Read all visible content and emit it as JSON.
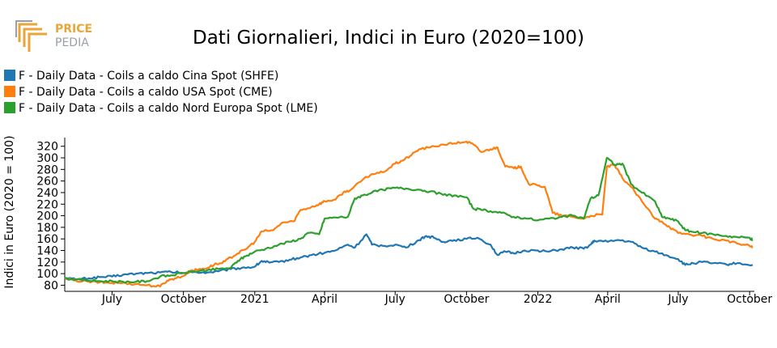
{
  "logo": {
    "line1": "PRICE",
    "line2": "PEDIA"
  },
  "chart_data": {
    "type": "line",
    "title": "Dati Giornalieri, Indici in Euro (2020=100)",
    "xlabel": "",
    "ylabel": "Indici in Euro (2020 = 100)",
    "ylim": [
      75,
      335
    ],
    "yticks": [
      80,
      100,
      120,
      140,
      160,
      180,
      200,
      220,
      240,
      260,
      280,
      300,
      320
    ],
    "xlim": [
      "2020-05-01",
      "2022-10-05"
    ],
    "xticks": [
      {
        "date": "2020-07-01",
        "label": "July"
      },
      {
        "date": "2020-10-01",
        "label": "October"
      },
      {
        "date": "2021-01-01",
        "label": "2021"
      },
      {
        "date": "2021-04-01",
        "label": "April"
      },
      {
        "date": "2021-07-01",
        "label": "July"
      },
      {
        "date": "2021-10-01",
        "label": "October"
      },
      {
        "date": "2022-01-01",
        "label": "2022"
      },
      {
        "date": "2022-04-01",
        "label": "April"
      },
      {
        "date": "2022-07-01",
        "label": "July"
      },
      {
        "date": "2022-10-01",
        "label": "October"
      }
    ],
    "grid": false,
    "legend_position": "top-left",
    "series": [
      {
        "name": "F - Daily Data - Coils a caldo Cina Spot (SHFE)",
        "color": "#1f77b4",
        "points": [
          [
            "2020-05-01",
            93
          ],
          [
            "2020-05-15",
            90
          ],
          [
            "2020-06-01",
            92
          ],
          [
            "2020-06-15",
            94
          ],
          [
            "2020-07-01",
            95
          ],
          [
            "2020-07-15",
            98
          ],
          [
            "2020-08-01",
            100
          ],
          [
            "2020-08-15",
            101
          ],
          [
            "2020-09-01",
            102
          ],
          [
            "2020-09-15",
            103
          ],
          [
            "2020-10-01",
            101
          ],
          [
            "2020-10-15",
            103
          ],
          [
            "2020-11-01",
            102
          ],
          [
            "2020-11-15",
            104
          ],
          [
            "2020-12-01",
            108
          ],
          [
            "2020-12-15",
            110
          ],
          [
            "2021-01-01",
            112
          ],
          [
            "2021-01-10",
            122
          ],
          [
            "2021-01-20",
            119
          ],
          [
            "2021-02-01",
            120
          ],
          [
            "2021-02-15",
            124
          ],
          [
            "2021-03-01",
            128
          ],
          [
            "2021-03-15",
            132
          ],
          [
            "2021-04-01",
            136
          ],
          [
            "2021-04-15",
            140
          ],
          [
            "2021-05-01",
            150
          ],
          [
            "2021-05-10",
            145
          ],
          [
            "2021-05-25",
            168
          ],
          [
            "2021-06-01",
            150
          ],
          [
            "2021-06-15",
            148
          ],
          [
            "2021-07-01",
            150
          ],
          [
            "2021-07-15",
            145
          ],
          [
            "2021-08-01",
            158
          ],
          [
            "2021-08-10",
            165
          ],
          [
            "2021-08-20",
            162
          ],
          [
            "2021-09-01",
            155
          ],
          [
            "2021-09-15",
            158
          ],
          [
            "2021-10-01",
            160
          ],
          [
            "2021-10-15",
            162
          ],
          [
            "2021-11-01",
            150
          ],
          [
            "2021-11-10",
            132
          ],
          [
            "2021-11-20",
            138
          ],
          [
            "2021-12-01",
            135
          ],
          [
            "2021-12-15",
            140
          ],
          [
            "2022-01-01",
            140
          ],
          [
            "2022-01-15",
            138
          ],
          [
            "2022-02-01",
            142
          ],
          [
            "2022-02-15",
            145
          ],
          [
            "2022-03-01",
            143
          ],
          [
            "2022-03-10",
            150
          ],
          [
            "2022-03-15",
            157
          ],
          [
            "2022-04-01",
            155
          ],
          [
            "2022-04-15",
            158
          ],
          [
            "2022-05-01",
            155
          ],
          [
            "2022-05-15",
            145
          ],
          [
            "2022-06-01",
            138
          ],
          [
            "2022-06-15",
            132
          ],
          [
            "2022-07-01",
            125
          ],
          [
            "2022-07-10",
            115
          ],
          [
            "2022-07-20",
            118
          ],
          [
            "2022-08-01",
            120
          ],
          [
            "2022-08-15",
            118
          ],
          [
            "2022-09-01",
            116
          ],
          [
            "2022-09-15",
            118
          ],
          [
            "2022-10-05",
            115
          ]
        ]
      },
      {
        "name": "F - Daily Data - Coils a caldo USA Spot (CME)",
        "color": "#ff7f0e",
        "points": [
          [
            "2020-05-01",
            91
          ],
          [
            "2020-05-15",
            88
          ],
          [
            "2020-06-01",
            86
          ],
          [
            "2020-06-15",
            85
          ],
          [
            "2020-07-01",
            84
          ],
          [
            "2020-07-15",
            84
          ],
          [
            "2020-08-01",
            82
          ],
          [
            "2020-08-15",
            80
          ],
          [
            "2020-09-01",
            78
          ],
          [
            "2020-09-10",
            88
          ],
          [
            "2020-09-20",
            92
          ],
          [
            "2020-10-01",
            96
          ],
          [
            "2020-10-10",
            105
          ],
          [
            "2020-10-20",
            107
          ],
          [
            "2020-11-01",
            110
          ],
          [
            "2020-11-10",
            116
          ],
          [
            "2020-11-20",
            118
          ],
          [
            "2020-12-01",
            128
          ],
          [
            "2020-12-10",
            135
          ],
          [
            "2020-12-20",
            142
          ],
          [
            "2021-01-01",
            155
          ],
          [
            "2021-01-10",
            173
          ],
          [
            "2021-01-25",
            175
          ],
          [
            "2021-02-05",
            188
          ],
          [
            "2021-02-20",
            190
          ],
          [
            "2021-03-01",
            210
          ],
          [
            "2021-03-15",
            215
          ],
          [
            "2021-03-25",
            220
          ],
          [
            "2021-04-01",
            225
          ],
          [
            "2021-04-15",
            228
          ],
          [
            "2021-04-25",
            240
          ],
          [
            "2021-05-05",
            245
          ],
          [
            "2021-05-20",
            262
          ],
          [
            "2021-06-01",
            272
          ],
          [
            "2021-06-15",
            275
          ],
          [
            "2021-07-01",
            290
          ],
          [
            "2021-07-10",
            295
          ],
          [
            "2021-07-20",
            303
          ],
          [
            "2021-08-01",
            315
          ],
          [
            "2021-08-15",
            318
          ],
          [
            "2021-09-01",
            323
          ],
          [
            "2021-09-15",
            325
          ],
          [
            "2021-10-01",
            328
          ],
          [
            "2021-10-10",
            323
          ],
          [
            "2021-10-20",
            310
          ],
          [
            "2021-11-01",
            315
          ],
          [
            "2021-11-10",
            318
          ],
          [
            "2021-11-20",
            285
          ],
          [
            "2021-12-01",
            282
          ],
          [
            "2021-12-10",
            285
          ],
          [
            "2021-12-20",
            255
          ],
          [
            "2022-01-01",
            252
          ],
          [
            "2022-01-10",
            250
          ],
          [
            "2022-01-20",
            205
          ],
          [
            "2022-02-01",
            200
          ],
          [
            "2022-02-15",
            198
          ],
          [
            "2022-03-01",
            195
          ],
          [
            "2022-03-10",
            200
          ],
          [
            "2022-03-25",
            202
          ],
          [
            "2022-03-31",
            285
          ],
          [
            "2022-04-10",
            287
          ],
          [
            "2022-04-20",
            265
          ],
          [
            "2022-05-01",
            250
          ],
          [
            "2022-05-15",
            225
          ],
          [
            "2022-06-01",
            195
          ],
          [
            "2022-06-10",
            190
          ],
          [
            "2022-06-20",
            180
          ],
          [
            "2022-07-01",
            170
          ],
          [
            "2022-07-15",
            168
          ],
          [
            "2022-08-01",
            165
          ],
          [
            "2022-08-15",
            160
          ],
          [
            "2022-09-01",
            157
          ],
          [
            "2022-09-15",
            152
          ],
          [
            "2022-10-01",
            148
          ],
          [
            "2022-10-05",
            145
          ]
        ]
      },
      {
        "name": "F - Daily Data - Coils a caldo Nord Europa Spot (LME)",
        "color": "#2ca02c",
        "points": [
          [
            "2020-05-01",
            92
          ],
          [
            "2020-05-15",
            90
          ],
          [
            "2020-06-01",
            88
          ],
          [
            "2020-06-15",
            87
          ],
          [
            "2020-07-01",
            87
          ],
          [
            "2020-07-15",
            86
          ],
          [
            "2020-08-01",
            86
          ],
          [
            "2020-08-15",
            87
          ],
          [
            "2020-09-01",
            95
          ],
          [
            "2020-09-15",
            97
          ],
          [
            "2020-10-01",
            101
          ],
          [
            "2020-10-15",
            104
          ],
          [
            "2020-11-01",
            106
          ],
          [
            "2020-11-15",
            108
          ],
          [
            "2020-12-01",
            110
          ],
          [
            "2020-12-10",
            122
          ],
          [
            "2020-12-20",
            130
          ],
          [
            "2021-01-01",
            138
          ],
          [
            "2021-01-15",
            143
          ],
          [
            "2021-02-01",
            150
          ],
          [
            "2021-02-15",
            155
          ],
          [
            "2021-03-01",
            160
          ],
          [
            "2021-03-10",
            170
          ],
          [
            "2021-03-25",
            168
          ],
          [
            "2021-04-01",
            195
          ],
          [
            "2021-04-15",
            197
          ],
          [
            "2021-05-01",
            198
          ],
          [
            "2021-05-10",
            230
          ],
          [
            "2021-05-20",
            235
          ],
          [
            "2021-06-01",
            240
          ],
          [
            "2021-06-15",
            245
          ],
          [
            "2021-07-01",
            248
          ],
          [
            "2021-07-15",
            247
          ],
          [
            "2021-08-01",
            245
          ],
          [
            "2021-08-15",
            242
          ],
          [
            "2021-09-01",
            236
          ],
          [
            "2021-09-15",
            235
          ],
          [
            "2021-10-01",
            232
          ],
          [
            "2021-10-10",
            212
          ],
          [
            "2021-10-20",
            210
          ],
          [
            "2021-11-01",
            208
          ],
          [
            "2021-11-15",
            205
          ],
          [
            "2021-12-01",
            198
          ],
          [
            "2021-12-15",
            196
          ],
          [
            "2022-01-01",
            192
          ],
          [
            "2022-01-15",
            195
          ],
          [
            "2022-02-01",
            198
          ],
          [
            "2022-02-15",
            200
          ],
          [
            "2022-03-01",
            195
          ],
          [
            "2022-03-10",
            230
          ],
          [
            "2022-03-20",
            235
          ],
          [
            "2022-03-31",
            300
          ],
          [
            "2022-04-10",
            288
          ],
          [
            "2022-04-20",
            290
          ],
          [
            "2022-05-01",
            255
          ],
          [
            "2022-05-15",
            240
          ],
          [
            "2022-06-01",
            225
          ],
          [
            "2022-06-10",
            198
          ],
          [
            "2022-06-20",
            195
          ],
          [
            "2022-07-01",
            190
          ],
          [
            "2022-07-10",
            175
          ],
          [
            "2022-07-20",
            172
          ],
          [
            "2022-08-01",
            170
          ],
          [
            "2022-08-15",
            168
          ],
          [
            "2022-09-01",
            165
          ],
          [
            "2022-09-15",
            163
          ],
          [
            "2022-10-01",
            162
          ],
          [
            "2022-10-05",
            158
          ]
        ]
      }
    ]
  }
}
